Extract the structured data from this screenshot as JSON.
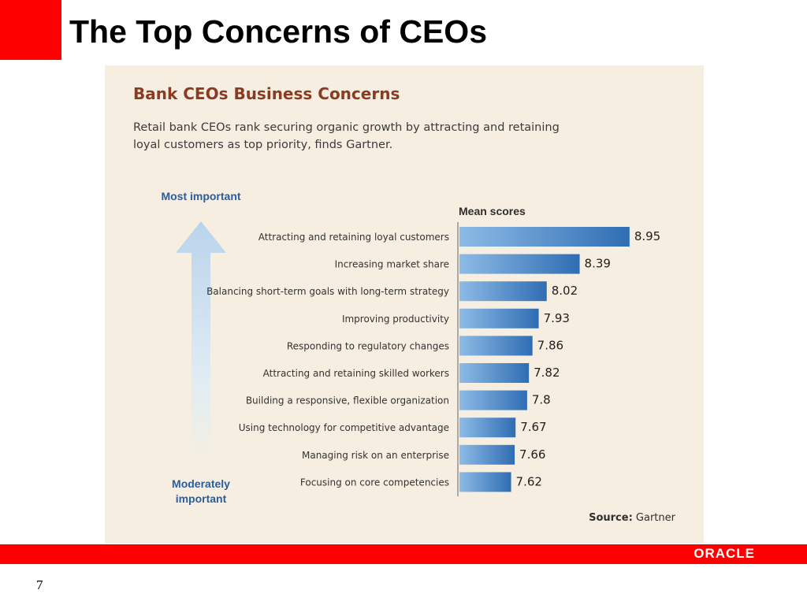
{
  "slide": {
    "title": "The Top Concerns of CEOs",
    "page_number": "7",
    "logo_text": "ORACLE"
  },
  "chart": {
    "title": "Bank CEOs Business Concerns",
    "subtitle": "Retail bank CEOs rank securing organic growth by attracting and retaining loyal customers as top priority, finds Gartner.",
    "scale_top_label": "Most important",
    "scale_bottom_label": "Moderately important",
    "source_label": "Source:",
    "source_value": "Gartner"
  },
  "colors": {
    "accent_red": "#ff0000",
    "bar_blue": "#3f7fc4",
    "chart_title_brown": "#8c3b23",
    "importance_blue": "#2a5d9e",
    "panel_background": "#f5eee1"
  },
  "chart_data": {
    "type": "bar",
    "orientation": "horizontal",
    "title": "Bank CEOs Business Concerns",
    "value_header": "Mean scores",
    "categories": [
      "Attracting and retaining loyal customers",
      "Increasing market share",
      "Balancing short-term goals with long-term strategy",
      "Improving productivity",
      "Responding to regulatory changes",
      "Attracting and retaining skilled workers",
      "Building a responsive, flexible organization",
      "Using technology for competitive advantage",
      "Managing risk on an enterprise",
      "Focusing on core competencies"
    ],
    "values": [
      8.95,
      8.39,
      8.02,
      7.93,
      7.86,
      7.82,
      7.8,
      7.67,
      7.66,
      7.62
    ],
    "value_labels": [
      "8.95",
      "8.39",
      "8.02",
      "7.93",
      "7.86",
      "7.82",
      "7.8",
      "7.67",
      "7.66",
      "7.62"
    ],
    "grid": false,
    "legend": "none"
  }
}
